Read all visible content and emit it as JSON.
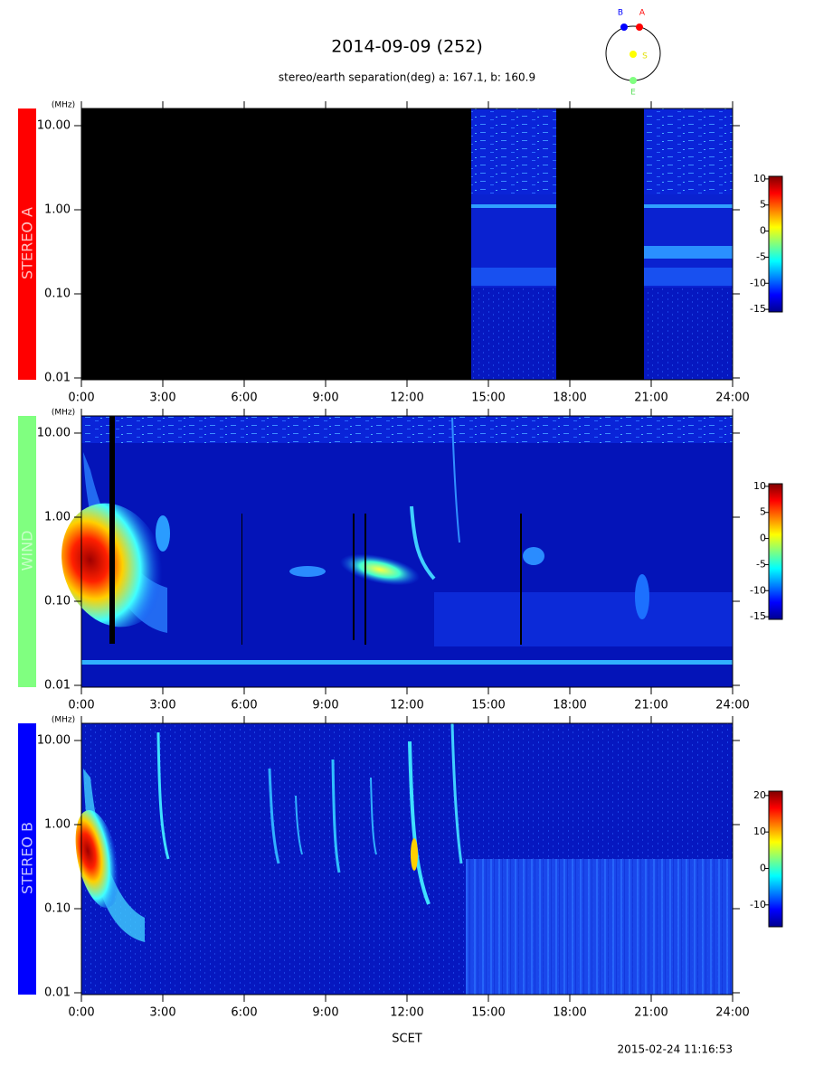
{
  "title": "2014-09-09 (252)",
  "subtitle": "stereo/earth separation(deg) a: 167.1, b: 160.9",
  "orbit_labels": [
    "B",
    "A",
    "S",
    "E"
  ],
  "xlabel": "SCET",
  "timestamp": "2015-02-24 11:16:53",
  "chart_data": [
    {
      "type": "spectrogram",
      "label": "STEREO A",
      "label_color": "#ff0000",
      "label_text_color": "#ffc0c0",
      "y_unit": "(MHz)",
      "xlim": [
        0,
        24
      ],
      "xticks": [
        {
          "value": 0,
          "label": "0:00"
        },
        {
          "value": 3,
          "label": "3:00"
        },
        {
          "value": 6,
          "label": "6:00"
        },
        {
          "value": 9,
          "label": "9:00"
        },
        {
          "value": 12,
          "label": "12:00"
        },
        {
          "value": 15,
          "label": "15:00"
        },
        {
          "value": 18,
          "label": "18:00"
        },
        {
          "value": 21,
          "label": "21:00"
        },
        {
          "value": 24,
          "label": "24:00"
        }
      ],
      "ylim": [
        0.01,
        16
      ],
      "yticks": [
        {
          "value": 10,
          "label": "10.00"
        },
        {
          "value": 1,
          "label": "1.00"
        },
        {
          "value": 0.1,
          "label": "0.10"
        },
        {
          "value": 0.01,
          "label": "0.01"
        }
      ],
      "log_y": true,
      "clim": [
        -15.5,
        10.5
      ],
      "cticks": [
        10,
        5,
        0,
        -5,
        -10,
        -15
      ]
    },
    {
      "type": "spectrogram",
      "label": "WIND",
      "label_color": "#80ff80",
      "label_text_color": "#c8ffc8",
      "y_unit": "(MHz)",
      "xlim": [
        0,
        24
      ],
      "xticks": [
        {
          "value": 0,
          "label": "0:00"
        },
        {
          "value": 3,
          "label": "3:00"
        },
        {
          "value": 6,
          "label": "6:00"
        },
        {
          "value": 9,
          "label": "9:00"
        },
        {
          "value": 12,
          "label": "12:00"
        },
        {
          "value": 15,
          "label": "15:00"
        },
        {
          "value": 18,
          "label": "18:00"
        },
        {
          "value": 21,
          "label": "21:00"
        },
        {
          "value": 24,
          "label": "24:00"
        }
      ],
      "ylim": [
        0.01,
        16
      ],
      "yticks": [
        {
          "value": 10,
          "label": "10.00"
        },
        {
          "value": 1,
          "label": "1.00"
        },
        {
          "value": 0.1,
          "label": "0.10"
        },
        {
          "value": 0.01,
          "label": "0.01"
        }
      ],
      "log_y": true,
      "clim": [
        -15.5,
        10.5
      ],
      "cticks": [
        10,
        5,
        0,
        -5,
        -10,
        -15
      ]
    },
    {
      "type": "spectrogram",
      "label": "STEREO B",
      "label_color": "#0000ff",
      "label_text_color": "#c0c0ff",
      "y_unit": "(MHz)",
      "xlim": [
        0,
        24
      ],
      "xticks": [
        {
          "value": 0,
          "label": "0:00"
        },
        {
          "value": 3,
          "label": "3:00"
        },
        {
          "value": 6,
          "label": "6:00"
        },
        {
          "value": 9,
          "label": "9:00"
        },
        {
          "value": 12,
          "label": "12:00"
        },
        {
          "value": 15,
          "label": "15:00"
        },
        {
          "value": 18,
          "label": "18:00"
        },
        {
          "value": 21,
          "label": "21:00"
        },
        {
          "value": 24,
          "label": "24:00"
        }
      ],
      "ylim": [
        0.01,
        16
      ],
      "yticks": [
        {
          "value": 10,
          "label": "10.00"
        },
        {
          "value": 1,
          "label": "1.00"
        },
        {
          "value": 0.1,
          "label": "0.10"
        },
        {
          "value": 0.01,
          "label": "0.01"
        }
      ],
      "log_y": true,
      "clim": [
        -16,
        21.2
      ],
      "cticks": [
        20,
        10,
        0,
        -10
      ]
    }
  ]
}
